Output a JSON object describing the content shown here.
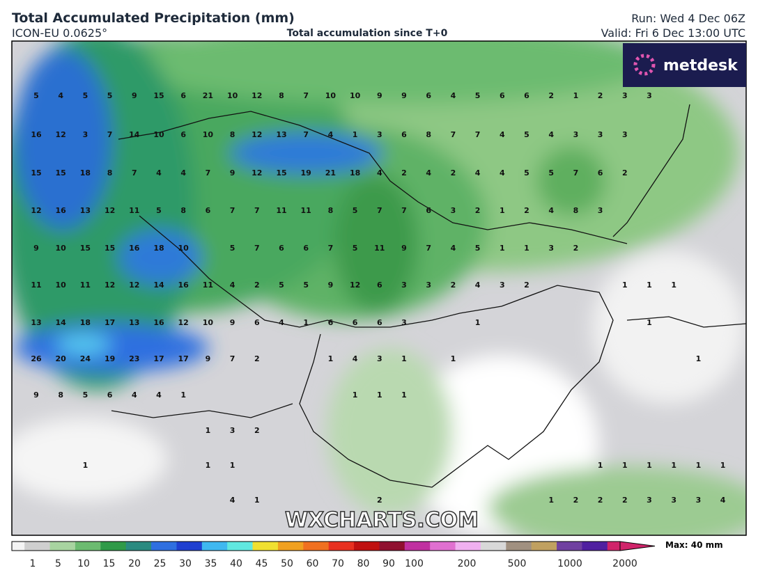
{
  "header": {
    "title": "Total Accumulated Precipitation (mm)",
    "model": "ICON-EU 0.0625°",
    "subtitle": "Total accumulation since T+0",
    "run": "Run: Wed 4 Dec 06Z",
    "valid": "Valid: Fri 6 Dec 13:00 UTC"
  },
  "logo": "metdesk",
  "watermark": "WXCHARTS.COM",
  "map_labels": [
    [
      5,
      4,
      5,
      5,
      9,
      15,
      6,
      21,
      10,
      12,
      8,
      7,
      10,
      10,
      9,
      9,
      6,
      4,
      5,
      6,
      6,
      2,
      1,
      2,
      3,
      3,
      null,
      null,
      null
    ],
    [
      16,
      12,
      3,
      7,
      14,
      10,
      6,
      10,
      8,
      12,
      13,
      7,
      4,
      1,
      3,
      6,
      8,
      7,
      7,
      4,
      5,
      4,
      3,
      3,
      3,
      null,
      null,
      null,
      null
    ],
    [
      15,
      15,
      18,
      8,
      7,
      4,
      4,
      7,
      9,
      12,
      15,
      19,
      21,
      18,
      4,
      2,
      4,
      2,
      4,
      4,
      5,
      5,
      7,
      6,
      2,
      null,
      null,
      null,
      null
    ],
    [
      12,
      16,
      13,
      12,
      11,
      5,
      8,
      6,
      7,
      7,
      11,
      11,
      8,
      5,
      7,
      7,
      6,
      3,
      2,
      1,
      2,
      4,
      8,
      3,
      null,
      null,
      null,
      null,
      null
    ],
    [
      9,
      10,
      15,
      15,
      16,
      18,
      10,
      null,
      5,
      7,
      6,
      6,
      7,
      5,
      11,
      9,
      7,
      4,
      5,
      1,
      1,
      3,
      2,
      null,
      null,
      null,
      null,
      null,
      null
    ],
    [
      11,
      10,
      11,
      12,
      12,
      14,
      16,
      11,
      4,
      2,
      5,
      5,
      9,
      12,
      6,
      3,
      3,
      2,
      4,
      3,
      2,
      null,
      null,
      null,
      1,
      1,
      1,
      null,
      null
    ],
    [
      13,
      14,
      18,
      17,
      13,
      16,
      12,
      10,
      9,
      6,
      4,
      1,
      6,
      6,
      6,
      3,
      null,
      null,
      1,
      null,
      null,
      null,
      null,
      null,
      null,
      1,
      null,
      null,
      null
    ],
    [
      26,
      20,
      24,
      19,
      23,
      17,
      17,
      9,
      7,
      2,
      null,
      null,
      1,
      4,
      3,
      1,
      null,
      1,
      null,
      null,
      null,
      null,
      null,
      null,
      null,
      null,
      null,
      1,
      null
    ],
    [
      9,
      8,
      5,
      6,
      4,
      4,
      1,
      null,
      null,
      null,
      null,
      null,
      null,
      1,
      1,
      1,
      null,
      null,
      null,
      null,
      null,
      null,
      null,
      null,
      null,
      null,
      null,
      null,
      null
    ],
    [
      null,
      null,
      null,
      null,
      null,
      null,
      null,
      1,
      3,
      2,
      null,
      null,
      null,
      null,
      null,
      null,
      null,
      null,
      null,
      null,
      null,
      null,
      null,
      null,
      null,
      null,
      null,
      null,
      null
    ],
    [
      null,
      null,
      1,
      null,
      null,
      null,
      null,
      1,
      1,
      null,
      null,
      null,
      null,
      null,
      null,
      null,
      null,
      null,
      null,
      null,
      null,
      null,
      null,
      1,
      1,
      1,
      1,
      1,
      1
    ],
    [
      null,
      null,
      null,
      null,
      null,
      null,
      null,
      null,
      4,
      1,
      null,
      null,
      null,
      null,
      2,
      null,
      null,
      null,
      null,
      null,
      null,
      1,
      2,
      2,
      2,
      3,
      3,
      3,
      4
    ]
  ],
  "colorbar": {
    "ticks": [
      1,
      5,
      10,
      15,
      20,
      25,
      30,
      35,
      40,
      45,
      50,
      60,
      70,
      80,
      90,
      100,
      200,
      500,
      1000,
      2000
    ],
    "max_label": "Max: 40 mm"
  }
}
